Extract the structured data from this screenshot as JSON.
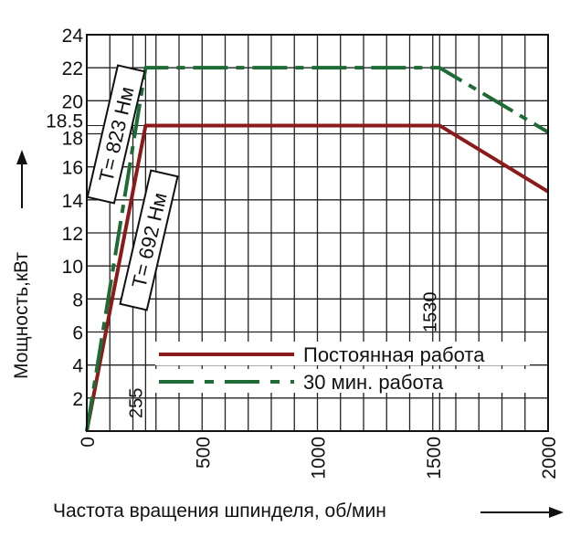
{
  "chart_data": {
    "type": "line",
    "xlabel": "Частота вращения шпинделя, об/мин",
    "ylabel": "Мощность,кВт",
    "xlim": [
      0,
      2000
    ],
    "ylim": [
      0,
      24
    ],
    "x_ticks": [
      0,
      500,
      1000,
      1500,
      2000
    ],
    "x_tick_labels": [
      "0",
      "500",
      "1000",
      "1500",
      "2000"
    ],
    "y_ticks": [
      2,
      4,
      6,
      8,
      10,
      12,
      14,
      16,
      18,
      18.5,
      20,
      22,
      24
    ],
    "y_tick_labels": [
      "2",
      "4",
      "6",
      "8",
      "10",
      "12",
      "14",
      "16",
      "18",
      "18.5",
      "20",
      "22",
      "24"
    ],
    "grid": true,
    "legend_position": "bottom-right",
    "series": [
      {
        "name": "Постоянная работа",
        "color": "#8b1a1a",
        "style": "solid",
        "x": [
          0,
          255,
          1530,
          2000
        ],
        "y": [
          0,
          18.5,
          18.5,
          14.5
        ]
      },
      {
        "name": "30 мин. работа",
        "color": "#1e6b35",
        "style": "dashdot",
        "x": [
          0,
          255,
          1530,
          2000
        ],
        "y": [
          0,
          22,
          22,
          18.1
        ]
      }
    ],
    "annotations": [
      {
        "text": "T= 823 Нм",
        "series": "30 мин. работа"
      },
      {
        "text": "T= 692 Нм",
        "series": "Постоянная работа"
      },
      {
        "text": "255",
        "x": 255
      },
      {
        "text": "1530",
        "x": 1530
      }
    ]
  }
}
